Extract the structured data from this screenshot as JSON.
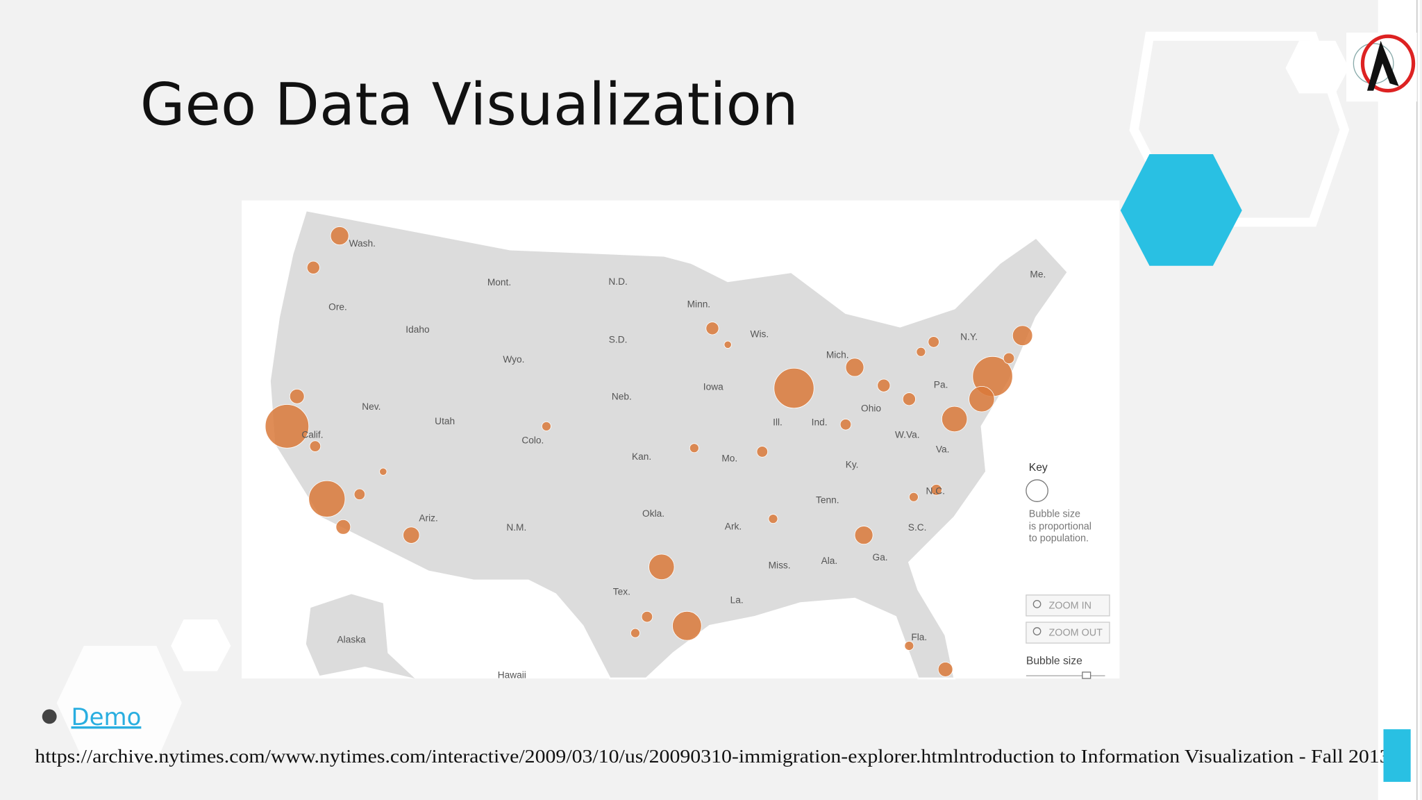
{
  "slide": {
    "title": "Geo Data Visualization",
    "map": {
      "state_labels": [
        "Wash.",
        "Mont.",
        "N.D.",
        "Minn.",
        "Ore.",
        "Idaho",
        "S.D.",
        "Wis.",
        "Me.",
        "N.Y.",
        "Mich.",
        "Wyo.",
        "Iowa",
        "Pa.",
        "Neb.",
        "Nev.",
        "Ohio",
        "Utah",
        "Ill.",
        "Ind.",
        "Calif.",
        "W.Va.",
        "Colo.",
        "Va.",
        "Kan.",
        "Mo.",
        "Ky.",
        "N.C.",
        "Tenn.",
        "Okla.",
        "Ariz.",
        "N.M.",
        "Ark.",
        "S.C.",
        "Miss.",
        "Ala.",
        "Ga.",
        "Tex.",
        "La.",
        "Fla.",
        "Alaska",
        "Hawaii"
      ],
      "key_title": "Key",
      "key_text": [
        "Bubble size",
        "is proportional",
        "to population."
      ],
      "zoom_in": "ZOOM IN",
      "zoom_out": "ZOOM OUT",
      "bubble_size": "Bubble size"
    },
    "bullet": "Demo",
    "footer": "https://archive.nytimes.com/www.nytimes.com/interactive/2009/03/10/us/20090310-immigration-explorer.htmlntroduction to Information Visualization - Fall 2013"
  }
}
